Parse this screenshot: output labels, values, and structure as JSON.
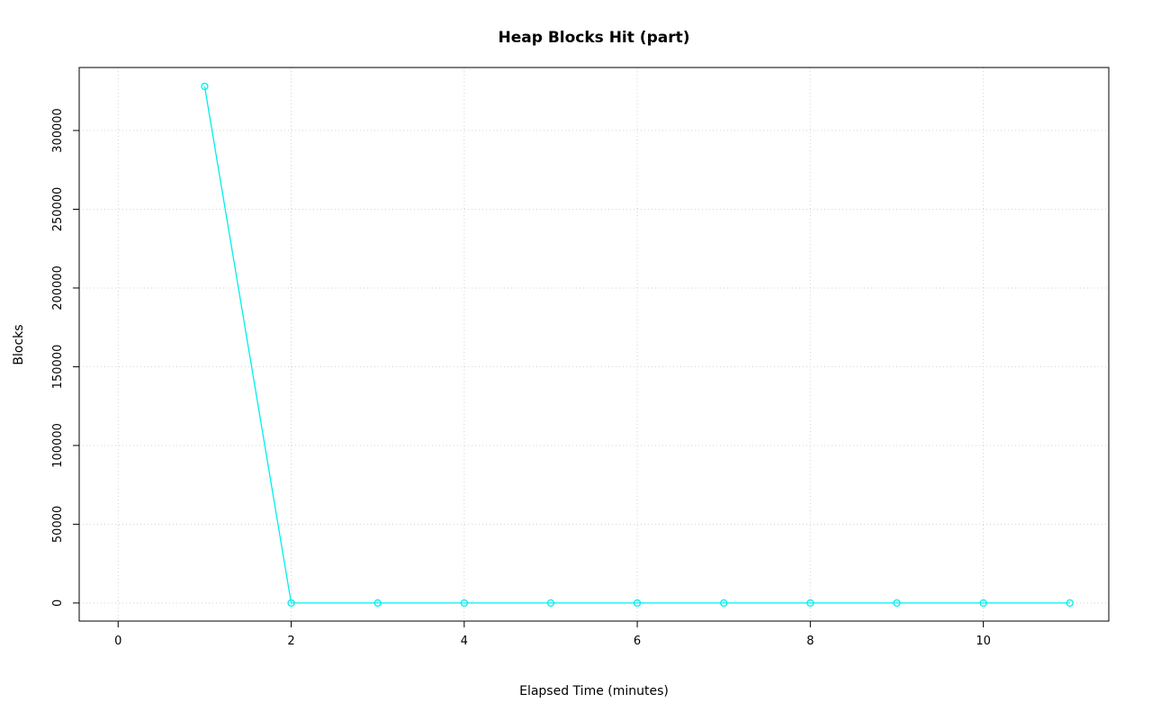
{
  "chart_data": {
    "type": "line",
    "title": "Heap Blocks Hit (part)",
    "xlabel": "Elapsed Time (minutes)",
    "ylabel": "Blocks",
    "x": [
      1,
      2,
      3,
      4,
      5,
      6,
      7,
      8,
      9,
      10,
      11
    ],
    "values": [
      328000,
      0,
      0,
      0,
      0,
      0,
      0,
      0,
      0,
      0,
      0
    ],
    "x_ticks": [
      0,
      2,
      4,
      6,
      8,
      10
    ],
    "x_tick_labels": [
      "0",
      "2",
      "4",
      "6",
      "8",
      "10"
    ],
    "y_ticks": [
      0,
      50000,
      100000,
      150000,
      200000,
      250000,
      300000
    ],
    "y_tick_labels": [
      "0",
      "50000",
      "100000",
      "150000",
      "200000",
      "250000",
      "300000"
    ],
    "xlim": [
      -0.45,
      11.45
    ],
    "ylim": [
      -11500,
      340000
    ],
    "grid": true,
    "legend": "none",
    "line_color": "#00EEEE",
    "marker": "open-circle",
    "grid_color": "#D3D3D3",
    "box_color": "#000000"
  }
}
